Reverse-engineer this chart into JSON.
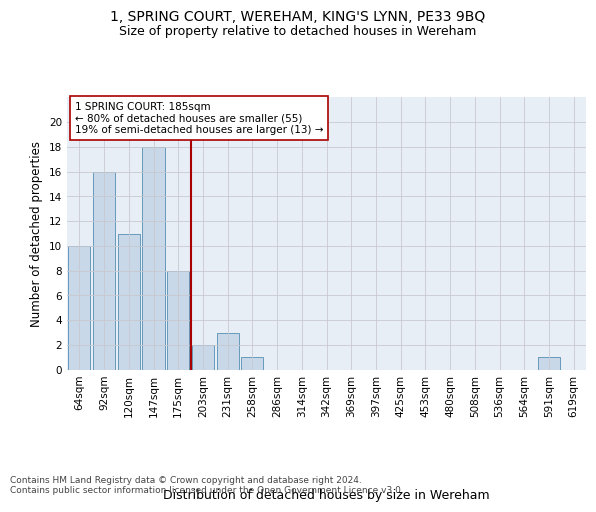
{
  "title": "1, SPRING COURT, WEREHAM, KING'S LYNN, PE33 9BQ",
  "subtitle": "Size of property relative to detached houses in Wereham",
  "xlabel": "Distribution of detached houses by size in Wereham",
  "ylabel": "Number of detached properties",
  "bin_labels": [
    "64sqm",
    "92sqm",
    "120sqm",
    "147sqm",
    "175sqm",
    "203sqm",
    "231sqm",
    "258sqm",
    "286sqm",
    "314sqm",
    "342sqm",
    "369sqm",
    "397sqm",
    "425sqm",
    "453sqm",
    "480sqm",
    "508sqm",
    "536sqm",
    "564sqm",
    "591sqm",
    "619sqm"
  ],
  "bar_values": [
    10,
    16,
    11,
    18,
    8,
    2,
    3,
    1,
    0,
    0,
    0,
    0,
    0,
    0,
    0,
    0,
    0,
    0,
    0,
    1,
    0
  ],
  "bar_color": "#c8d8e8",
  "bar_edge_color": "#6699bb",
  "grid_color": "#c8c8d0",
  "background_color": "#e8eef6",
  "property_line_x": 4.5,
  "property_line_color": "#aa0000",
  "annotation_text": "1 SPRING COURT: 185sqm\n← 80% of detached houses are smaller (55)\n19% of semi-detached houses are larger (13) →",
  "annotation_box_color": "#ffffff",
  "annotation_box_edge": "#aa0000",
  "ylim": [
    0,
    22
  ],
  "yticks": [
    0,
    2,
    4,
    6,
    8,
    10,
    12,
    14,
    16,
    18,
    20
  ],
  "footer_text": "Contains HM Land Registry data © Crown copyright and database right 2024.\nContains public sector information licensed under the Open Government Licence v3.0.",
  "title_fontsize": 10,
  "subtitle_fontsize": 9,
  "xlabel_fontsize": 9,
  "ylabel_fontsize": 8.5,
  "tick_fontsize": 7.5,
  "annotation_fontsize": 7.5,
  "footer_fontsize": 6.5
}
